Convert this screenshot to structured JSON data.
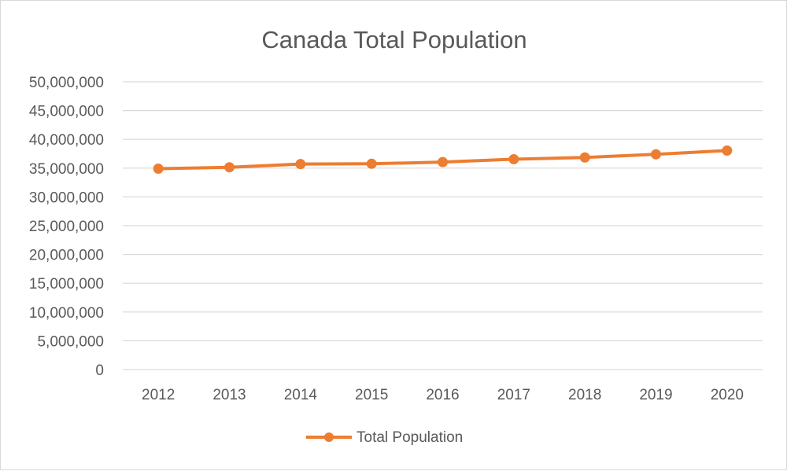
{
  "chart_data": {
    "type": "line",
    "title": "Canada Total Population",
    "xlabel": "",
    "ylabel": "",
    "categories": [
      "2012",
      "2013",
      "2014",
      "2015",
      "2016",
      "2017",
      "2018",
      "2019",
      "2020"
    ],
    "series": [
      {
        "name": "Total Population",
        "color": "#ED7D31",
        "values": [
          34900000,
          35150000,
          35700000,
          35750000,
          36050000,
          36550000,
          36850000,
          37400000,
          38050000
        ]
      }
    ],
    "ylim": [
      0,
      50000000
    ],
    "yticks": [
      {
        "value": 0,
        "label": "0"
      },
      {
        "value": 5000000,
        "label": "5,000,000"
      },
      {
        "value": 10000000,
        "label": "10,000,000"
      },
      {
        "value": 15000000,
        "label": "15,000,000"
      },
      {
        "value": 20000000,
        "label": "20,000,000"
      },
      {
        "value": 25000000,
        "label": "25,000,000"
      },
      {
        "value": 30000000,
        "label": "30,000,000"
      },
      {
        "value": 35000000,
        "label": "35,000,000"
      },
      {
        "value": 40000000,
        "label": "40,000,000"
      },
      {
        "value": 45000000,
        "label": "45,000,000"
      },
      {
        "value": 50000000,
        "label": "50,000,000"
      }
    ],
    "grid": true,
    "legend_position": "bottom"
  }
}
